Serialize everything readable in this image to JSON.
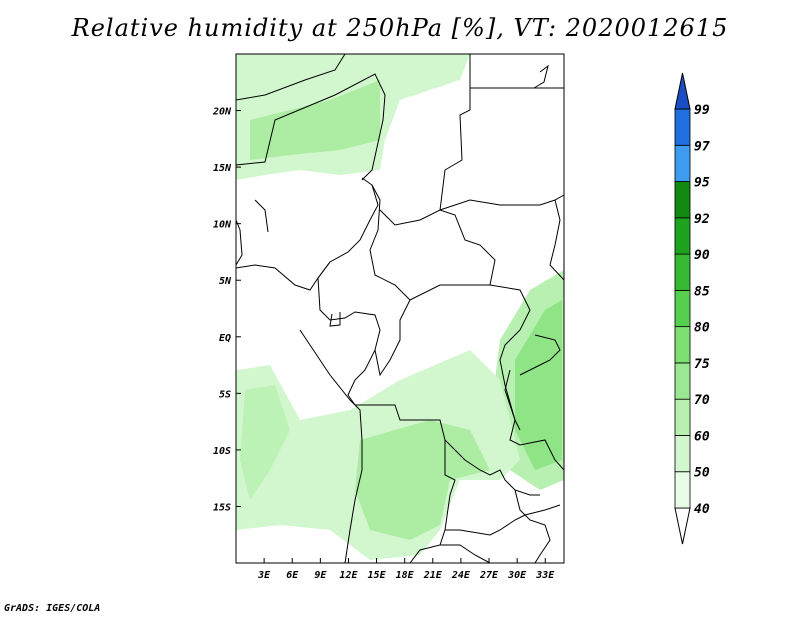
{
  "title": "Relative humidity at 250hPa [%], VT: 2020012615",
  "credit": "GrADS: IGES/COLA",
  "map": {
    "lon_range": [
      0,
      35
    ],
    "lat_range": [
      -20,
      25
    ],
    "lon_ticks": [
      "3E",
      "6E",
      "9E",
      "12E",
      "15E",
      "18E",
      "21E",
      "24E",
      "27E",
      "30E",
      "33E"
    ],
    "lon_tick_values": [
      3,
      6,
      9,
      12,
      15,
      18,
      21,
      24,
      27,
      30,
      33
    ],
    "lat_ticks": [
      "20N",
      "15N",
      "10N",
      "5N",
      "EQ",
      "5S",
      "10S",
      "15S"
    ],
    "lat_tick_values": [
      20,
      15,
      10,
      5,
      0,
      -5,
      -10,
      -15
    ]
  },
  "colorbar": {
    "labels": [
      "40",
      "50",
      "60",
      "70",
      "75",
      "80",
      "85",
      "90",
      "92",
      "95",
      "97",
      "99"
    ],
    "colors": [
      "#ffffff",
      "#e8fbe6",
      "#d2f7ce",
      "#b7f0b0",
      "#9be892",
      "#7de073",
      "#55d04e",
      "#38b833",
      "#1fa31f",
      "#118a11",
      "#3f9bf0",
      "#1f6fe0",
      "#1a4fc4"
    ]
  }
}
